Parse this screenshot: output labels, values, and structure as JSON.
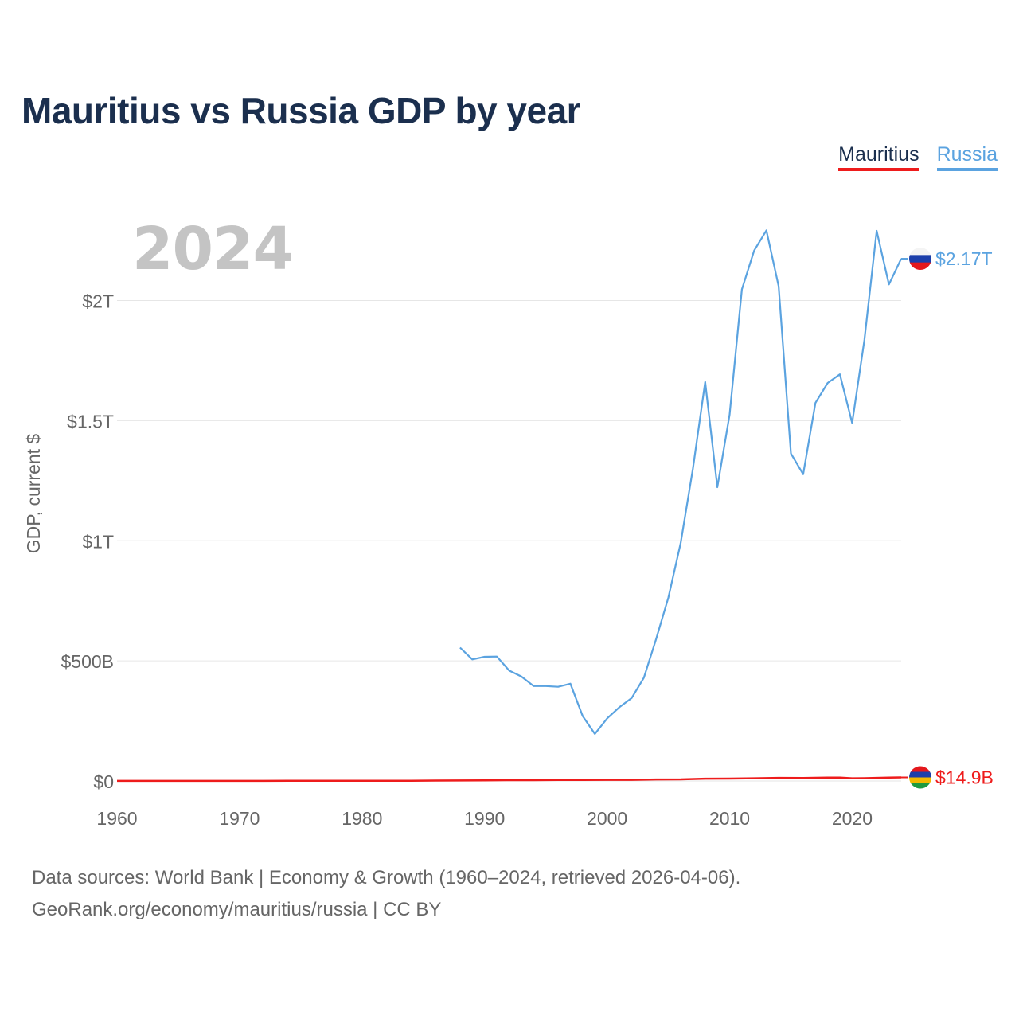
{
  "chart_data": {
    "type": "line",
    "title": "Mauritius vs Russia GDP by year",
    "ylabel": "GDP, current $",
    "xlabel": "",
    "current_year": "2024",
    "xlim": [
      1960,
      2024
    ],
    "ylim": [
      0,
      2300000000000
    ],
    "x_ticks": [
      1960,
      1970,
      1980,
      1990,
      2000,
      2010,
      2020
    ],
    "y_ticks": [
      {
        "value": 0,
        "label": "$0"
      },
      {
        "value": 500000000000,
        "label": "$500B"
      },
      {
        "value": 1000000000000,
        "label": "$1T"
      },
      {
        "value": 1500000000000,
        "label": "$1.5T"
      },
      {
        "value": 2000000000000,
        "label": "$2T"
      }
    ],
    "series": [
      {
        "name": "Mauritius",
        "color": "#ee1c1c",
        "end_label": "$14.9B",
        "x": [
          1960,
          1962,
          1964,
          1966,
          1968,
          1970,
          1972,
          1974,
          1976,
          1978,
          1980,
          1982,
          1984,
          1986,
          1988,
          1990,
          1992,
          1994,
          1996,
          1998,
          2000,
          2002,
          2004,
          2006,
          2008,
          2010,
          2012,
          2014,
          2016,
          2018,
          2019,
          2020,
          2021,
          2022,
          2023,
          2024
        ],
        "values": [
          200000000.0,
          200000000.0,
          200000000.0,
          200000000.0,
          200000000.0,
          200000000.0,
          300000000.0,
          500000000.0,
          700000000.0,
          900000000.0,
          1100000000.0,
          1100000000.0,
          1000000000.0,
          1500000000.0,
          2100000000.0,
          2700000000.0,
          3300000000.0,
          3300000000.0,
          4300000000.0,
          4200000000.0,
          4600000000.0,
          4500000000.0,
          6400000000.0,
          6700000000.0,
          9600000000.0,
          10000000000.0,
          11400000000.0,
          12800000000.0,
          12200000000.0,
          14200000000.0,
          14400000000.0,
          11400000000.0,
          11500000000.0,
          12900000000.0,
          14200000000.0,
          14900000000.0
        ]
      },
      {
        "name": "Russia",
        "color": "#5ba3e0",
        "end_label": "$2.17T",
        "x": [
          1988,
          1989,
          1990,
          1991,
          1992,
          1993,
          1994,
          1995,
          1996,
          1997,
          1998,
          1999,
          2000,
          2001,
          2002,
          2003,
          2004,
          2005,
          2006,
          2007,
          2008,
          2009,
          2010,
          2011,
          2012,
          2013,
          2014,
          2015,
          2016,
          2017,
          2018,
          2019,
          2020,
          2021,
          2022,
          2023,
          2024
        ],
        "values": [
          555000000000.0,
          506000000000.0,
          517000000000.0,
          518000000000.0,
          460000000000.0,
          435000000000.0,
          395000000000.0,
          395000000000.0,
          392000000000.0,
          405000000000.0,
          271000000000.0,
          196000000000.0,
          260000000000.0,
          307000000000.0,
          345000000000.0,
          430000000000.0,
          591000000000.0,
          764000000000.0,
          990000000000.0,
          1300000000000.0,
          1661000000000.0,
          1223000000000.0,
          1525000000000.0,
          2046000000000.0,
          2208000000000.0,
          2292000000000.0,
          2059000000000.0,
          1363000000000.0,
          1277000000000.0,
          1574000000000.0,
          1657000000000.0,
          1693000000000.0,
          1490000000000.0,
          1836000000000.0,
          2290000000000.0,
          2067000000000.0,
          2174000000000.0
        ]
      }
    ]
  },
  "legend": {
    "mauritius": "Mauritius",
    "russia": "Russia"
  },
  "footer": {
    "sources": "Data sources: World Bank | Economy & Growth (1960–2024, retrieved 2026-04-06).",
    "credit": "GeoRank.org/economy/mauritius/russia | CC BY"
  }
}
